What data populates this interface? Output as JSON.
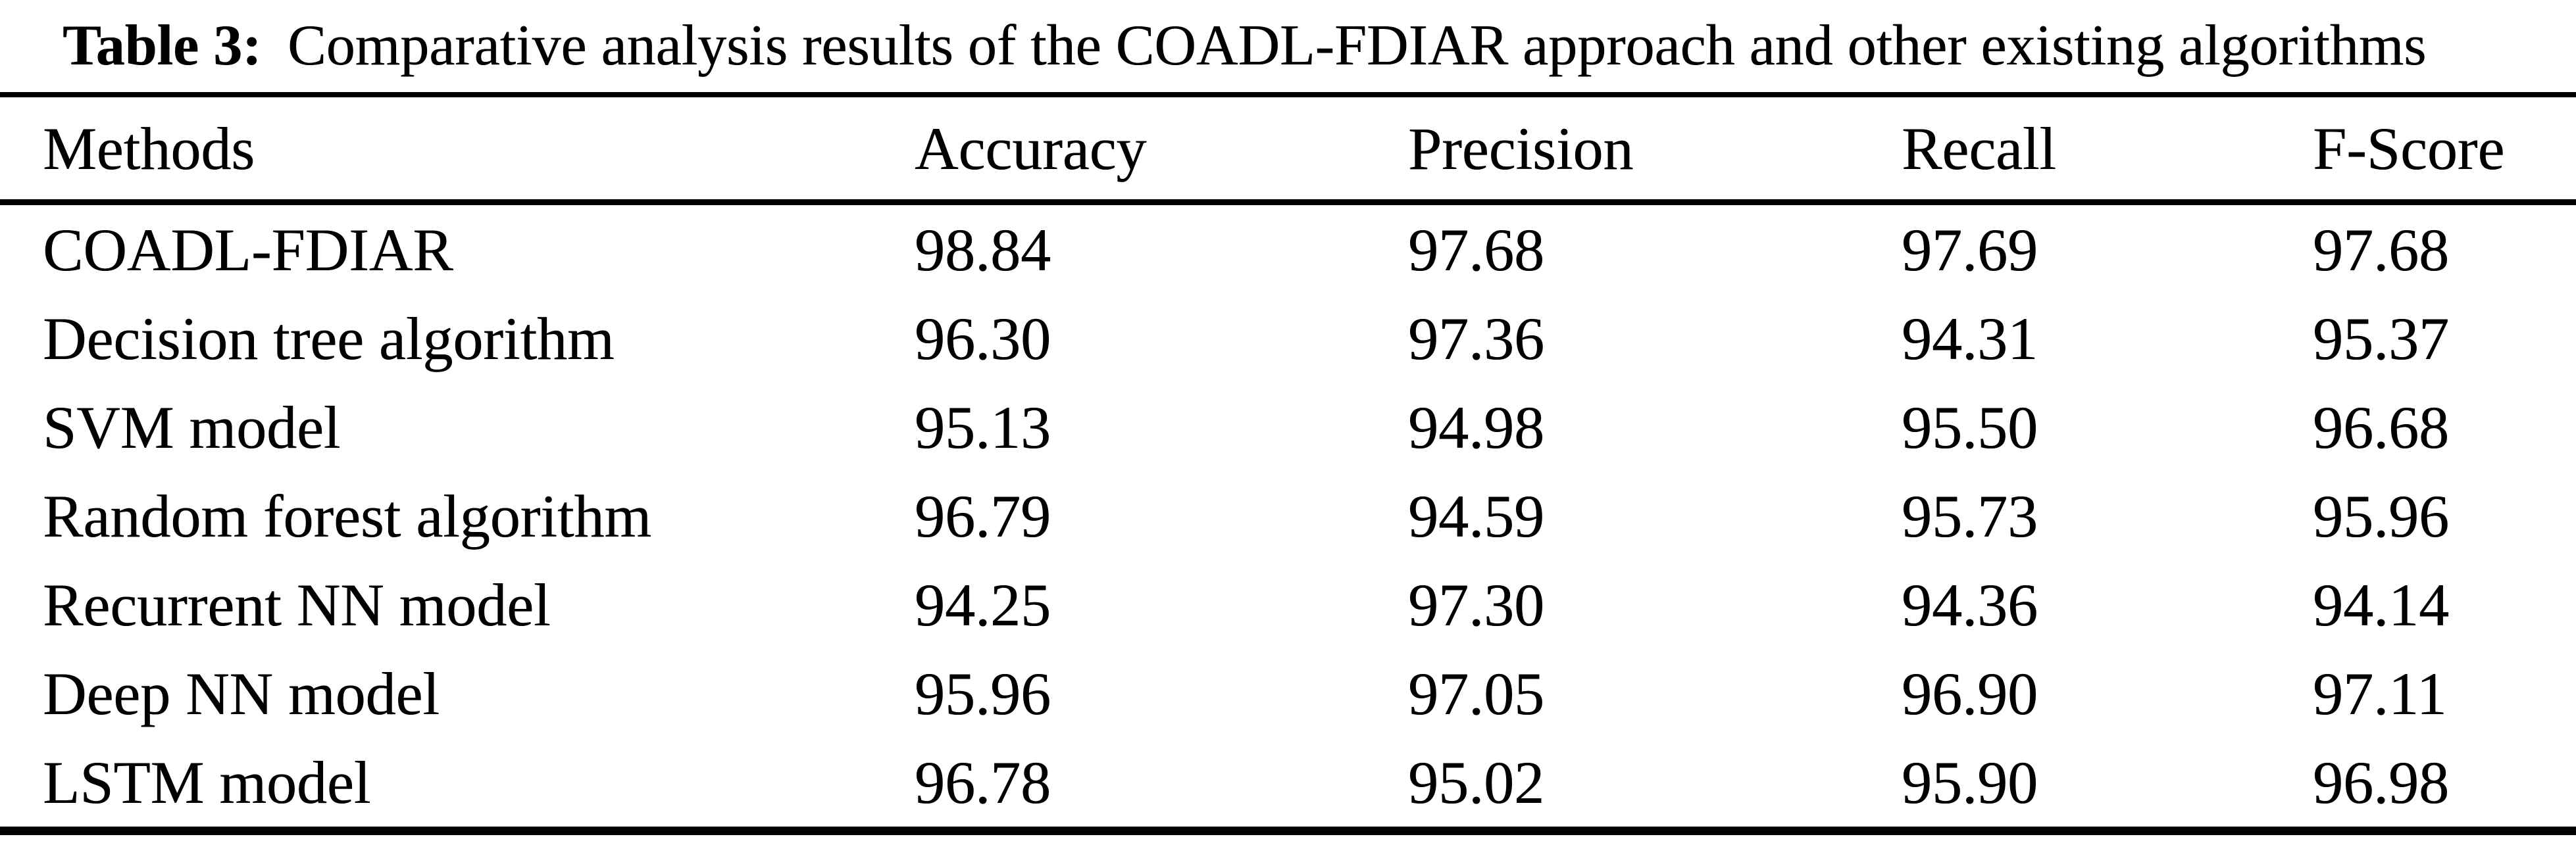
{
  "caption": {
    "label": "Table 3:",
    "text": "Comparative analysis results of the COADL-FDIAR approach and other existing algorithms"
  },
  "table": {
    "headers": [
      "Methods",
      "Accuracy",
      "Precision",
      "Recall",
      "F-Score"
    ],
    "rows": [
      {
        "method": "COADL-FDIAR",
        "accuracy": "98.84",
        "precision": "97.68",
        "recall": "97.69",
        "f_score": "97.68"
      },
      {
        "method": "Decision tree algorithm",
        "accuracy": "96.30",
        "precision": "97.36",
        "recall": "94.31",
        "f_score": "95.37"
      },
      {
        "method": "SVM model",
        "accuracy": "95.13",
        "precision": "94.98",
        "recall": "95.50",
        "f_score": "96.68"
      },
      {
        "method": "Random forest algorithm",
        "accuracy": "96.79",
        "precision": "94.59",
        "recall": "95.73",
        "f_score": "95.96"
      },
      {
        "method": "Recurrent NN model",
        "accuracy": "94.25",
        "precision": "97.30",
        "recall": "94.36",
        "f_score": "94.14"
      },
      {
        "method": "Deep NN model",
        "accuracy": "95.96",
        "precision": "97.05",
        "recall": "96.90",
        "f_score": "97.11"
      },
      {
        "method": "LSTM model",
        "accuracy": "96.78",
        "precision": "95.02",
        "recall": "95.90",
        "f_score": "96.98"
      }
    ]
  },
  "colors": {
    "text": "#000000",
    "background": "#ffffff",
    "rule": "#000000"
  }
}
